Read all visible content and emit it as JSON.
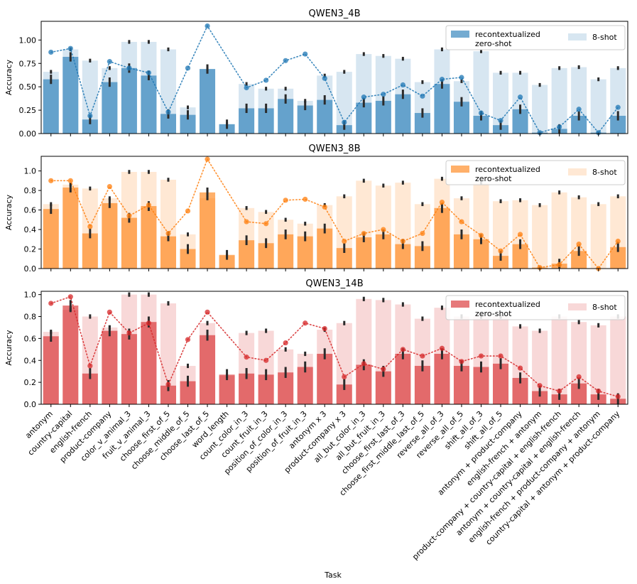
{
  "figure": {
    "xlabel": "Task",
    "ylabel": "Accuracy"
  },
  "chart_data": {
    "type": "bar",
    "xlabel": "Task",
    "ylabel": "Accuracy",
    "categories": [
      "antonym",
      "country-capital",
      "english-french",
      "product-company",
      "color_v_animal_3",
      "fruit_v_animal_3",
      "choose_first_of_5",
      "choose_middle_of_5",
      "choose_last_of_5",
      "word_length",
      "count_color_in_3",
      "count_fruit_in_3",
      "position_of_color_in_3",
      "position_of_fruit_in_3",
      "antonym x 3",
      "product-company x 3",
      "all_but_color_in_3",
      "all_but_fruit_in_3",
      "choose_first_last_of_3",
      "choose_first_middle_last_of_5",
      "reverse_all_of_3",
      "reverse_all_of_5",
      "shift_all_of_3",
      "shift_all_of_5",
      "antonym + product-company",
      "english-french + antonym",
      "product-company + country-capital + english-french",
      "antonym + country-capital + english-french",
      "english-french + product-company + antonym",
      "country-capital + antonym + product-company"
    ],
    "legend": {
      "labels": [
        "recontextualized",
        "zero-shot",
        "8-shot"
      ],
      "placement": "top-right"
    },
    "panels": [
      {
        "title": "QWEN3_4B",
        "color": "#1f77b4",
        "ylim": [
          0,
          1.2
        ],
        "yticks": [
          "0.00",
          "0.25",
          "0.50",
          "0.75",
          "1.00"
        ],
        "recontextualized": [
          0.58,
          0.82,
          0.15,
          0.55,
          0.7,
          0.62,
          0.21,
          0.2,
          0.69,
          0.1,
          0.27,
          0.27,
          0.37,
          0.3,
          0.36,
          0.09,
          0.33,
          0.35,
          0.42,
          0.22,
          0.53,
          0.34,
          0.19,
          0.09,
          0.26,
          0.01,
          0.05,
          0.19,
          0.01,
          0.19
        ],
        "zero_shot": [
          0.87,
          0.91,
          0.19,
          0.77,
          0.7,
          0.65,
          0.23,
          0.7,
          1.15,
          null,
          0.49,
          0.57,
          0.78,
          0.85,
          0.59,
          0.12,
          0.39,
          0.42,
          0.52,
          0.4,
          0.58,
          0.6,
          0.22,
          0.14,
          0.39,
          0.01,
          0.07,
          0.26,
          0.01,
          0.28
        ],
        "eight_shot": [
          0.66,
          0.9,
          0.78,
          0.7,
          0.98,
          0.98,
          0.9,
          0.28,
          0.69,
          0.1,
          0.53,
          0.48,
          0.48,
          0.35,
          0.62,
          0.66,
          0.85,
          0.83,
          0.8,
          0.55,
          0.9,
          0.56,
          0.88,
          0.65,
          0.65,
          0.52,
          0.7,
          0.71,
          0.58,
          0.7
        ]
      },
      {
        "title": "QWEN3_8B",
        "color": "#ff7f0e",
        "ylim": [
          0,
          1.15
        ],
        "yticks": [
          "0.0",
          "0.2",
          "0.4",
          "0.6",
          "0.8",
          "1.0"
        ],
        "recontextualized": [
          0.61,
          0.83,
          0.36,
          0.67,
          0.52,
          0.64,
          0.33,
          0.2,
          0.78,
          0.14,
          0.29,
          0.26,
          0.35,
          0.33,
          0.41,
          0.21,
          0.32,
          0.35,
          0.25,
          0.23,
          0.62,
          0.35,
          0.3,
          0.13,
          0.25,
          0.01,
          0.05,
          0.18,
          0.0,
          0.22
        ],
        "zero_shot": [
          0.9,
          0.9,
          0.43,
          0.84,
          0.54,
          0.65,
          0.36,
          0.59,
          1.12,
          null,
          0.48,
          0.46,
          0.7,
          0.71,
          0.63,
          0.28,
          0.36,
          0.4,
          0.28,
          0.36,
          0.68,
          0.48,
          0.34,
          0.18,
          0.35,
          0.01,
          0.04,
          0.25,
          0.0,
          0.28
        ],
        "eight_shot": [
          0.66,
          0.86,
          0.82,
          0.72,
          0.99,
          0.99,
          0.91,
          0.35,
          0.72,
          0.13,
          0.62,
          0.58,
          0.5,
          0.46,
          0.65,
          0.74,
          0.9,
          0.85,
          0.88,
          0.66,
          0.92,
          0.72,
          0.88,
          0.69,
          0.7,
          0.65,
          0.78,
          0.73,
          0.66,
          0.74
        ]
      },
      {
        "title": "QWEN3_14B",
        "color": "#d62728",
        "ylim": [
          0,
          1.03
        ],
        "yticks": [
          "0.0",
          "0.2",
          "0.4",
          "0.6",
          "0.8",
          "1.0"
        ],
        "recontextualized": [
          0.62,
          0.9,
          0.28,
          0.67,
          0.64,
          0.75,
          0.17,
          0.21,
          0.63,
          0.27,
          0.28,
          0.27,
          0.29,
          0.34,
          0.46,
          0.18,
          0.36,
          0.3,
          0.46,
          0.35,
          0.46,
          0.35,
          0.34,
          0.37,
          0.24,
          0.12,
          0.09,
          0.19,
          0.09,
          0.05
        ],
        "zero_shot": [
          0.92,
          0.98,
          0.35,
          0.84,
          0.65,
          0.74,
          0.18,
          0.59,
          0.84,
          null,
          0.43,
          0.4,
          0.56,
          0.74,
          0.69,
          0.25,
          0.37,
          0.32,
          0.5,
          0.44,
          0.51,
          0.39,
          0.44,
          0.44,
          0.33,
          0.17,
          0.12,
          0.25,
          0.12,
          0.07
        ],
        "eight_shot": [
          0.66,
          0.86,
          0.8,
          0.7,
          1.0,
          1.0,
          0.92,
          0.35,
          0.74,
          0.26,
          0.65,
          0.67,
          0.5,
          0.46,
          0.68,
          0.74,
          0.96,
          0.95,
          0.91,
          0.78,
          0.88,
          0.8,
          0.8,
          0.8,
          0.71,
          0.67,
          0.8,
          0.75,
          0.72,
          0.8
        ]
      }
    ]
  }
}
